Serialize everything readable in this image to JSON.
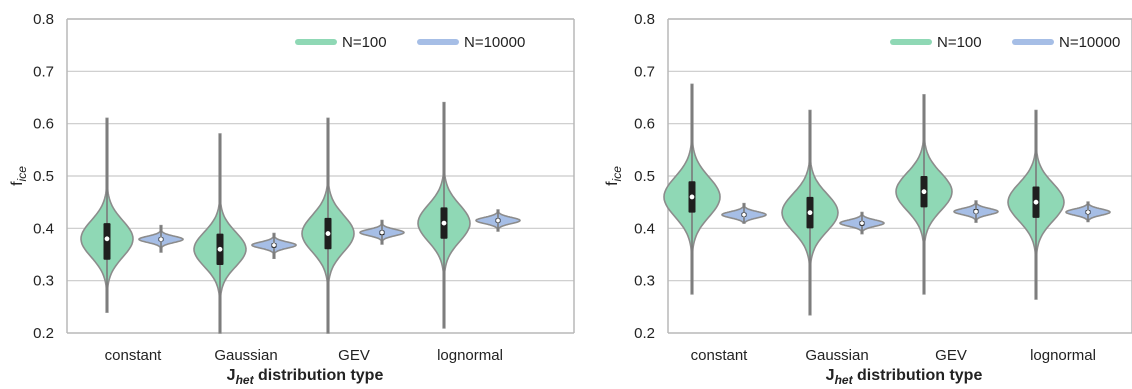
{
  "colors": {
    "n100": "#8fd8b5",
    "n10000": "#a6bee6",
    "violin_edge": "#8c8c8c",
    "axis": "#b8b8b8",
    "grid": "#c9c9c9",
    "text": "#222222",
    "whisker": "#7a7a7a",
    "box": "#1f1f1f"
  },
  "chart_data": [
    {
      "type": "violin",
      "ylabel": "f",
      "ylabel_sub": "ice",
      "xlabel": "J",
      "xlabel_sub": "het",
      "xlabel_suffix": " distribution type",
      "ylim": [
        0.2,
        0.8
      ],
      "yticks": [
        "0.2",
        "0.3",
        "0.4",
        "0.5",
        "0.6",
        "0.7",
        "0.8"
      ],
      "grid": "horizontal",
      "legend_position": "top-right",
      "categories": [
        "constant",
        "Gaussian",
        "GEV",
        "lognormal"
      ],
      "series": [
        {
          "name": "N=100",
          "stats": [
            {
              "min": 0.24,
              "q1": 0.34,
              "median": 0.38,
              "q3": 0.41,
              "max": 0.61,
              "spread": 0.035
            },
            {
              "min": 0.2,
              "q1": 0.33,
              "median": 0.36,
              "q3": 0.39,
              "max": 0.58,
              "spread": 0.033
            },
            {
              "min": 0.2,
              "q1": 0.36,
              "median": 0.39,
              "q3": 0.42,
              "max": 0.61,
              "spread": 0.035
            },
            {
              "min": 0.21,
              "q1": 0.38,
              "median": 0.41,
              "q3": 0.44,
              "max": 0.64,
              "spread": 0.035
            }
          ]
        },
        {
          "name": "N=10000",
          "stats": [
            {
              "min": 0.355,
              "q1": 0.375,
              "median": 0.379,
              "q3": 0.383,
              "max": 0.405,
              "spread": 0.006
            },
            {
              "min": 0.343,
              "q1": 0.363,
              "median": 0.368,
              "q3": 0.372,
              "max": 0.39,
              "spread": 0.006
            },
            {
              "min": 0.37,
              "q1": 0.387,
              "median": 0.392,
              "q3": 0.396,
              "max": 0.415,
              "spread": 0.006
            },
            {
              "min": 0.395,
              "q1": 0.411,
              "median": 0.415,
              "q3": 0.419,
              "max": 0.435,
              "spread": 0.006
            }
          ]
        }
      ]
    },
    {
      "type": "violin",
      "ylabel": "f",
      "ylabel_sub": "ice",
      "xlabel": "J",
      "xlabel_sub": "het",
      "xlabel_suffix": " distribution type",
      "ylim": [
        0.2,
        0.8
      ],
      "yticks": [
        "0.2",
        "0.3",
        "0.4",
        "0.5",
        "0.6",
        "0.7",
        "0.8"
      ],
      "grid": "horizontal",
      "legend_position": "top-right",
      "categories": [
        "constant",
        "Gaussian",
        "GEV",
        "lognormal"
      ],
      "series": [
        {
          "name": "N=100",
          "stats": [
            {
              "min": 0.275,
              "q1": 0.43,
              "median": 0.46,
              "q3": 0.49,
              "max": 0.675,
              "spread": 0.038
            },
            {
              "min": 0.235,
              "q1": 0.4,
              "median": 0.43,
              "q3": 0.46,
              "max": 0.625,
              "spread": 0.036
            },
            {
              "min": 0.275,
              "q1": 0.44,
              "median": 0.47,
              "q3": 0.5,
              "max": 0.655,
              "spread": 0.036
            },
            {
              "min": 0.265,
              "q1": 0.42,
              "median": 0.45,
              "q3": 0.48,
              "max": 0.625,
              "spread": 0.036
            }
          ]
        },
        {
          "name": "N=10000",
          "stats": [
            {
              "min": 0.41,
              "q1": 0.422,
              "median": 0.426,
              "q3": 0.43,
              "max": 0.447,
              "spread": 0.006
            },
            {
              "min": 0.39,
              "q1": 0.405,
              "median": 0.41,
              "q3": 0.414,
              "max": 0.43,
              "spread": 0.006
            },
            {
              "min": 0.412,
              "q1": 0.428,
              "median": 0.432,
              "q3": 0.437,
              "max": 0.452,
              "spread": 0.006
            },
            {
              "min": 0.413,
              "q1": 0.427,
              "median": 0.431,
              "q3": 0.435,
              "max": 0.45,
              "spread": 0.006
            }
          ]
        }
      ]
    }
  ]
}
